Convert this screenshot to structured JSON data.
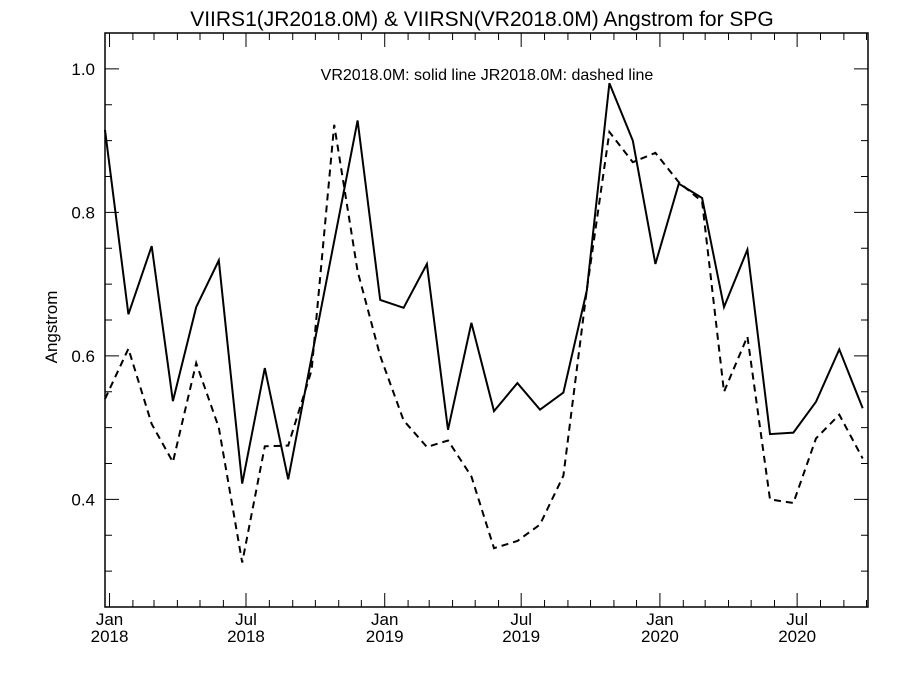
{
  "chart_data": {
    "type": "line",
    "title": "VIIRS1(JR2018.0M) & VIIRSN(VR2018.0M)  Angstrom for SPG",
    "ylabel": "Angstrom",
    "legend_note": "VR2018.0M: solid line   JR2018.0M: dashed line",
    "ylim": [
      0.25,
      1.05
    ],
    "xlim": [
      "2017-12-26",
      "2020-10-03"
    ],
    "y_ticks": [
      {
        "value": 0.4,
        "label": "0.4"
      },
      {
        "value": 0.6,
        "label": "0.6"
      },
      {
        "value": 0.8,
        "label": "0.8"
      },
      {
        "value": 1.0,
        "label": "1.0"
      }
    ],
    "x_ticks": [
      {
        "date": "2018-01-01",
        "line1": "Jan",
        "line2": "2018"
      },
      {
        "date": "2018-07-01",
        "line1": "Jul",
        "line2": "2018"
      },
      {
        "date": "2019-01-01",
        "line1": "Jan",
        "line2": "2019"
      },
      {
        "date": "2019-07-01",
        "line1": "Jul",
        "line2": "2019"
      },
      {
        "date": "2020-01-01",
        "line1": "Jan",
        "line2": "2020"
      },
      {
        "date": "2020-07-01",
        "line1": "Jul",
        "line2": "2020"
      }
    ],
    "series": [
      {
        "name": "VR2018.0M",
        "style": "solid",
        "x": [
          "2017-12-26",
          "2018-01-26",
          "2018-02-26",
          "2018-03-26",
          "2018-04-26",
          "2018-05-26",
          "2018-06-26",
          "2018-07-26",
          "2018-08-26",
          "2018-09-26",
          "2018-10-26",
          "2018-11-26",
          "2018-12-26",
          "2019-01-26",
          "2019-02-26",
          "2019-03-26",
          "2019-04-26",
          "2019-05-26",
          "2019-06-26",
          "2019-07-26",
          "2019-08-26",
          "2019-09-26",
          "2019-10-26",
          "2019-11-26",
          "2019-12-26",
          "2020-01-26",
          "2020-02-26",
          "2020-03-26",
          "2020-04-26",
          "2020-05-26",
          "2020-06-26",
          "2020-07-26",
          "2020-08-26",
          "2020-09-26"
        ],
        "values": [
          0.915,
          0.658,
          0.753,
          0.537,
          0.668,
          0.733,
          0.422,
          0.583,
          0.428,
          0.598,
          0.76,
          0.928,
          0.678,
          0.667,
          0.728,
          0.497,
          0.646,
          0.523,
          0.562,
          0.525,
          0.549,
          0.691,
          0.98,
          0.9,
          0.728,
          0.84,
          0.82,
          0.668,
          0.748,
          0.491,
          0.493,
          0.536,
          0.609,
          0.527
        ]
      },
      {
        "name": "JR2018.0M",
        "style": "dashed",
        "x": [
          "2017-12-26",
          "2018-01-26",
          "2018-02-26",
          "2018-03-26",
          "2018-04-26",
          "2018-05-26",
          "2018-06-26",
          "2018-07-26",
          "2018-08-26",
          "2018-09-26",
          "2018-10-26",
          "2018-11-26",
          "2018-12-26",
          "2019-01-26",
          "2019-02-26",
          "2019-03-26",
          "2019-04-26",
          "2019-05-26",
          "2019-06-26",
          "2019-07-26",
          "2019-08-26",
          "2019-09-26",
          "2019-10-26",
          "2019-11-26",
          "2019-12-26",
          "2020-01-26",
          "2020-02-26",
          "2020-03-26",
          "2020-04-26",
          "2020-05-26",
          "2020-06-26",
          "2020-07-26",
          "2020-08-26",
          "2020-09-26"
        ],
        "values": [
          0.54,
          0.61,
          0.505,
          0.452,
          0.59,
          0.5,
          0.312,
          0.474,
          0.475,
          0.58,
          0.922,
          0.718,
          0.6,
          0.51,
          0.473,
          0.482,
          0.432,
          0.332,
          0.342,
          0.365,
          0.433,
          0.692,
          0.912,
          0.87,
          0.883,
          0.842,
          0.815,
          0.55,
          0.627,
          0.4,
          0.395,
          0.485,
          0.518,
          0.457
        ]
      }
    ],
    "grid": false
  }
}
